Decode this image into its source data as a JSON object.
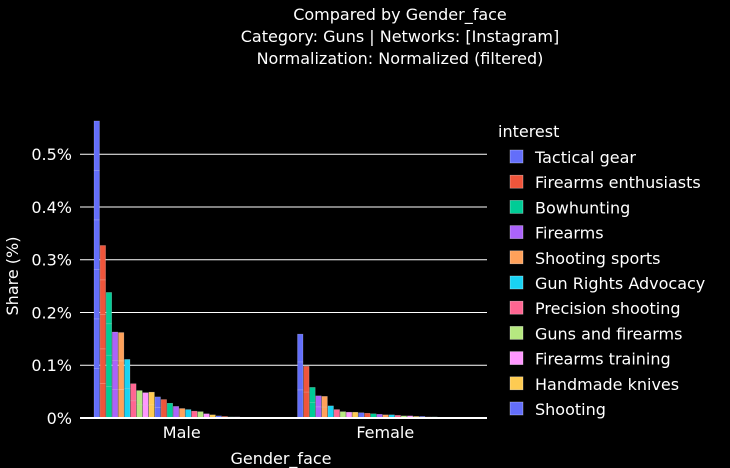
{
  "chart_data": {
    "type": "bar",
    "title_lines": [
      "Compared by Gender_face",
      "Category: Guns | Networks: [Instagram]",
      "Normalization: Normalized (filtered)"
    ],
    "xlabel": "Gender_face",
    "ylabel": "Share (%)",
    "ylim": [
      0,
      0.58
    ],
    "yticks": [
      0,
      0.1,
      0.2,
      0.3,
      0.4,
      0.5
    ],
    "ytick_labels": [
      "0%",
      "0.1%",
      "0.2%",
      "0.3%",
      "0.4%",
      "0.5%"
    ],
    "categories": [
      "Male",
      "Female"
    ],
    "legend_title": "interest",
    "legend_position": "right",
    "grid": true,
    "series": [
      {
        "name": "Tactical gear",
        "color": "#636efa",
        "values": [
          0.563,
          0.159
        ]
      },
      {
        "name": "Firearms enthusiasts",
        "color": "#ef553b",
        "values": [
          0.327,
          0.098
        ]
      },
      {
        "name": "Bowhunting",
        "color": "#00cc96",
        "values": [
          0.238,
          0.058
        ]
      },
      {
        "name": "Firearms",
        "color": "#ab63fa",
        "values": [
          0.163,
          0.042
        ]
      },
      {
        "name": "Shooting sports",
        "color": "#ffa15a",
        "values": [
          0.162,
          0.041
        ]
      },
      {
        "name": "Gun Rights Advocacy",
        "color": "#19d3f3",
        "values": [
          0.111,
          0.023
        ]
      },
      {
        "name": "Precision shooting",
        "color": "#ff6692",
        "values": [
          0.065,
          0.016
        ]
      },
      {
        "name": "Guns and firearms",
        "color": "#b6e880",
        "values": [
          0.052,
          0.012
        ]
      },
      {
        "name": "Firearms training",
        "color": "#ff97ff",
        "values": [
          0.048,
          0.011
        ]
      },
      {
        "name": "Handmade knives",
        "color": "#fecb52",
        "values": [
          0.049,
          0.011
        ]
      },
      {
        "name": "Shooting",
        "color": "#636efa",
        "values": [
          0.04,
          0.01
        ]
      }
    ],
    "hidden_series_values": [
      [
        0.035,
        0.009
      ],
      [
        0.028,
        0.008
      ],
      [
        0.022,
        0.007
      ],
      [
        0.018,
        0.006
      ],
      [
        0.016,
        0.006
      ],
      [
        0.013,
        0.005
      ],
      [
        0.012,
        0.004
      ],
      [
        0.008,
        0.004
      ],
      [
        0.006,
        0.003
      ],
      [
        0.004,
        0.003
      ],
      [
        0.003,
        0.002
      ],
      [
        0.002,
        0.002
      ],
      [
        0.002,
        0.001
      ],
      [
        0.001,
        0.001
      ],
      [
        0.001,
        0.001
      ],
      [
        0.001,
        0.001
      ]
    ],
    "hidden_series_colors": [
      "#ef553b",
      "#00cc96",
      "#ab63fa",
      "#ffa15a",
      "#19d3f3",
      "#ff6692",
      "#b6e880",
      "#ff97ff",
      "#fecb52",
      "#636efa",
      "#ef553b",
      "#00cc96",
      "#ab63fa",
      "#ffa15a",
      "#19d3f3",
      "#ff6692"
    ]
  }
}
